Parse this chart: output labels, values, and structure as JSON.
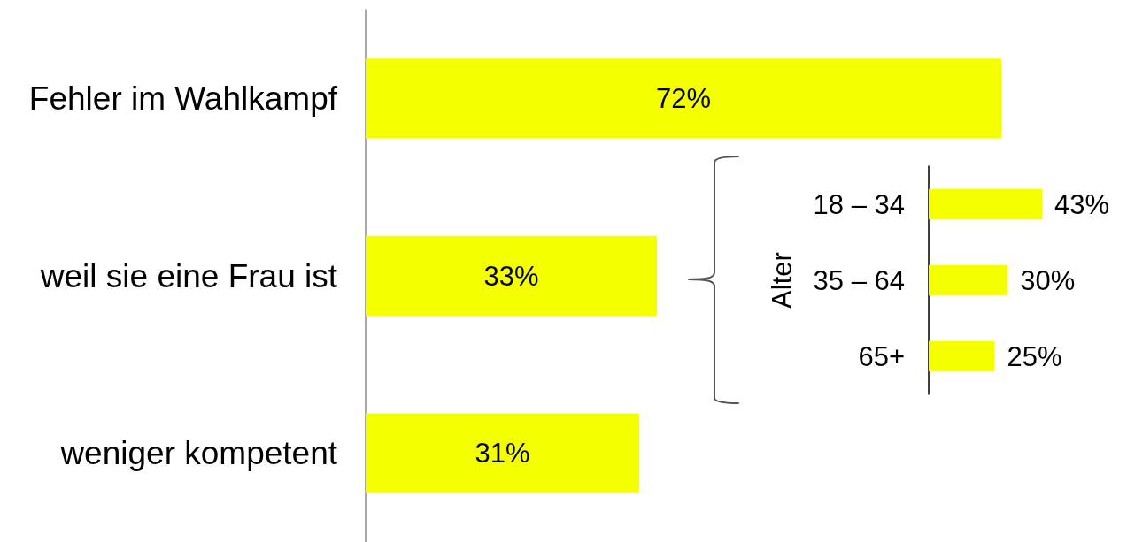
{
  "chart_data": [
    {
      "type": "bar",
      "orientation": "horizontal",
      "categories": [
        "Fehler im Wahlkampf",
        "weil sie eine Frau ist",
        "weniger kompetent"
      ],
      "values": [
        72,
        33,
        31
      ],
      "color": "#f4ff00",
      "value_labels": [
        "72%",
        "33%",
        "31%"
      ],
      "tick_labels": "y"
    },
    {
      "type": "bar",
      "orientation": "horizontal",
      "ylabel": "Alter",
      "categories": [
        "18 – 34",
        "35 – 64",
        "65+"
      ],
      "values": [
        43,
        30,
        25
      ],
      "color": "#f4ff00",
      "value_labels": [
        "43%",
        "30%",
        "25%"
      ],
      "tick_labels": "y"
    }
  ]
}
